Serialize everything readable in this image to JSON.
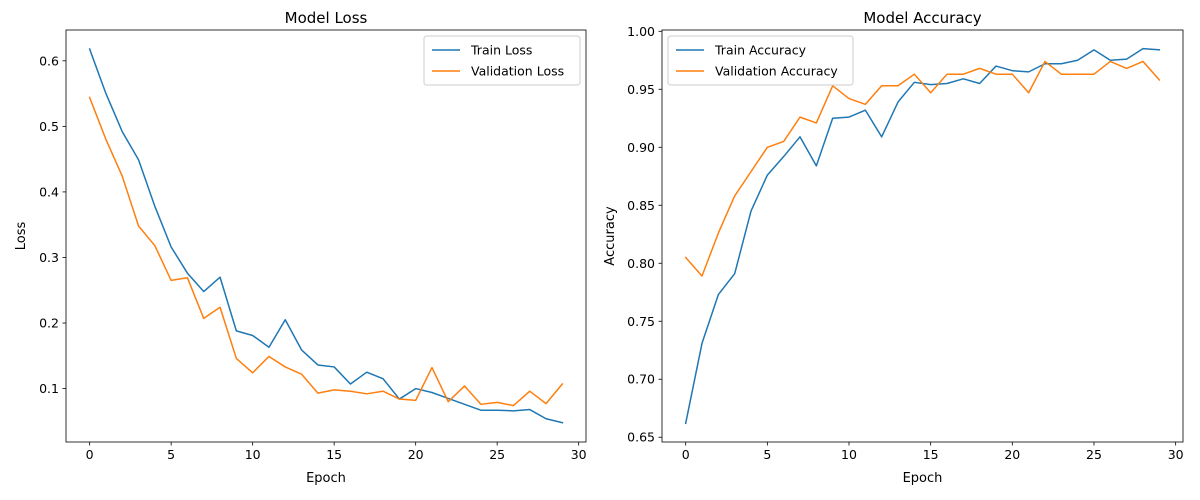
{
  "chart_data": [
    {
      "type": "line",
      "title": "Model Loss",
      "xlabel": "Epoch",
      "ylabel": "Loss",
      "xlim": [
        -1.45,
        30.45
      ],
      "ylim": [
        0.0185,
        0.647
      ],
      "xticks": [
        0,
        5,
        10,
        15,
        20,
        25,
        30
      ],
      "yticks": [
        0.1,
        0.2,
        0.3,
        0.4,
        0.5,
        0.6
      ],
      "grid": false,
      "legend": "top-right",
      "x": [
        0,
        1,
        2,
        3,
        4,
        5,
        6,
        7,
        8,
        9,
        10,
        11,
        12,
        13,
        14,
        15,
        16,
        17,
        18,
        19,
        20,
        21,
        22,
        23,
        24,
        25,
        26,
        27,
        28,
        29
      ],
      "series": [
        {
          "name": "Train Loss",
          "color": "#1f77b4",
          "values": [
            0.618,
            0.55,
            0.492,
            0.449,
            0.378,
            0.316,
            0.276,
            0.248,
            0.27,
            0.188,
            0.181,
            0.163,
            0.205,
            0.159,
            0.136,
            0.133,
            0.107,
            0.125,
            0.115,
            0.084,
            0.1,
            0.094,
            0.085,
            0.076,
            0.067,
            0.067,
            0.066,
            0.068,
            0.054,
            0.048
          ]
        },
        {
          "name": "Validation Loss",
          "color": "#ff7f0e",
          "values": [
            0.544,
            0.48,
            0.424,
            0.348,
            0.318,
            0.265,
            0.269,
            0.207,
            0.224,
            0.146,
            0.124,
            0.149,
            0.133,
            0.122,
            0.093,
            0.098,
            0.096,
            0.092,
            0.096,
            0.084,
            0.082,
            0.132,
            0.08,
            0.104,
            0.076,
            0.079,
            0.074,
            0.096,
            0.077,
            0.107
          ]
        }
      ]
    },
    {
      "type": "line",
      "title": "Model Accuracy",
      "xlabel": "Epoch",
      "ylabel": "Accuracy",
      "xlim": [
        -1.45,
        30.45
      ],
      "ylim": [
        0.6459,
        1.0011
      ],
      "xticks": [
        0,
        5,
        10,
        15,
        20,
        25,
        30
      ],
      "yticks": [
        0.65,
        0.7,
        0.75,
        0.8,
        0.85,
        0.9,
        0.95,
        1.0
      ],
      "grid": false,
      "legend": "top-left",
      "x": [
        0,
        1,
        2,
        3,
        4,
        5,
        6,
        7,
        8,
        9,
        10,
        11,
        12,
        13,
        14,
        15,
        16,
        17,
        18,
        19,
        20,
        21,
        22,
        23,
        24,
        25,
        26,
        27,
        28,
        29
      ],
      "series": [
        {
          "name": "Train Accuracy",
          "color": "#1f77b4",
          "values": [
            0.662,
            0.731,
            0.773,
            0.791,
            0.845,
            0.876,
            0.892,
            0.909,
            0.884,
            0.925,
            0.926,
            0.932,
            0.909,
            0.939,
            0.956,
            0.954,
            0.955,
            0.959,
            0.955,
            0.97,
            0.966,
            0.965,
            0.972,
            0.972,
            0.975,
            0.984,
            0.975,
            0.976,
            0.985,
            0.984
          ]
        },
        {
          "name": "Validation Accuracy",
          "color": "#ff7f0e",
          "values": [
            0.805,
            0.789,
            0.826,
            0.858,
            0.879,
            0.9,
            0.905,
            0.926,
            0.921,
            0.953,
            0.942,
            0.937,
            0.953,
            0.953,
            0.963,
            0.947,
            0.963,
            0.963,
            0.968,
            0.963,
            0.963,
            0.947,
            0.974,
            0.963,
            0.963,
            0.963,
            0.974,
            0.968,
            0.974,
            0.958
          ]
        }
      ]
    }
  ]
}
